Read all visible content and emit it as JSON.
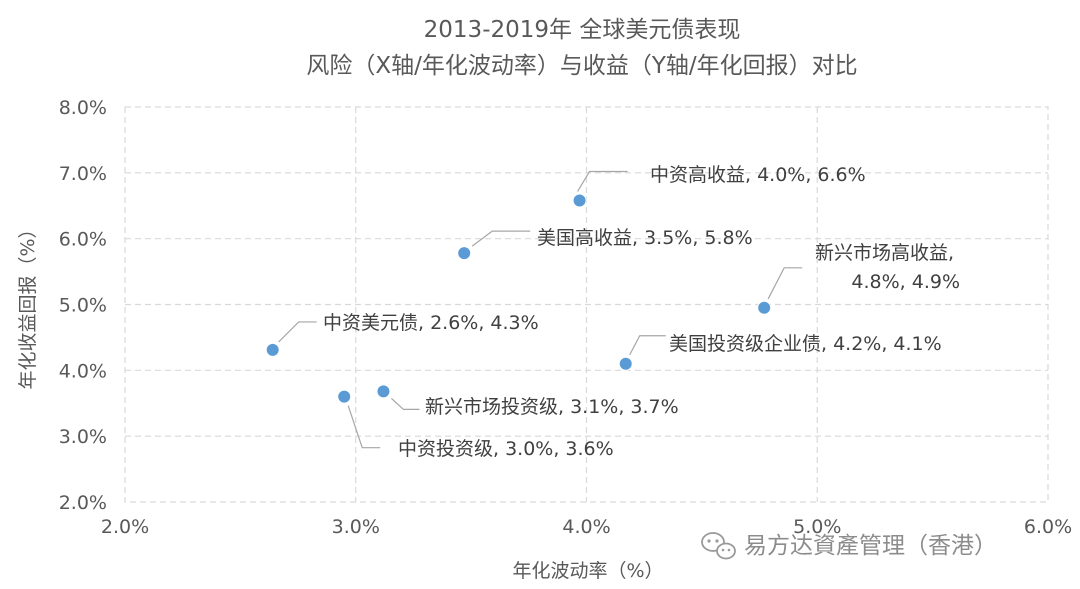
{
  "chart_data": {
    "type": "scatter",
    "title": [
      "2013-2019年 全球美元债表现",
      "风险（X轴/年化波动率）与收益（Y轴/年化回报）对比"
    ],
    "xlabel": "年化波动率（%）",
    "ylabel": "年化收益回报（%）",
    "xlim": [
      2.0,
      6.0
    ],
    "ylim": [
      2.0,
      8.0
    ],
    "x_ticks": [
      2.0,
      3.0,
      4.0,
      5.0,
      6.0
    ],
    "y_ticks": [
      2.0,
      3.0,
      4.0,
      5.0,
      6.0,
      7.0,
      8.0
    ],
    "x_tick_labels": [
      "2.0%",
      "3.0%",
      "4.0%",
      "5.0%",
      "6.0%"
    ],
    "y_tick_labels": [
      "2.0%",
      "3.0%",
      "4.0%",
      "5.0%",
      "6.0%",
      "7.0%",
      "8.0%"
    ],
    "grid": true,
    "marker_color": "#5b9bd5",
    "points": [
      {
        "x": 3.97,
        "y": 6.58,
        "label": [
          "中资高收益, 4.0%, 6.6%"
        ]
      },
      {
        "x": 3.47,
        "y": 5.78,
        "label": [
          "美国高收益, 3.5%, 5.8%"
        ]
      },
      {
        "x": 4.77,
        "y": 4.95,
        "label": [
          "新兴市场高收益,",
          "4.8%, 4.9%"
        ]
      },
      {
        "x": 2.64,
        "y": 4.31,
        "label": [
          "中资美元债, 2.6%, 4.3%"
        ]
      },
      {
        "x": 4.17,
        "y": 4.1,
        "label": [
          "美国投资级企业债, 4.2%, 4.1%"
        ]
      },
      {
        "x": 3.12,
        "y": 3.68,
        "label": [
          "新兴市场投资级, 3.1%, 3.7%"
        ]
      },
      {
        "x": 2.95,
        "y": 3.6,
        "label": [
          "中资投资级, 3.0%, 3.6%"
        ]
      }
    ]
  },
  "watermark": {
    "text": "易方达資產管理（香港）",
    "icon": "wechat-icon"
  }
}
